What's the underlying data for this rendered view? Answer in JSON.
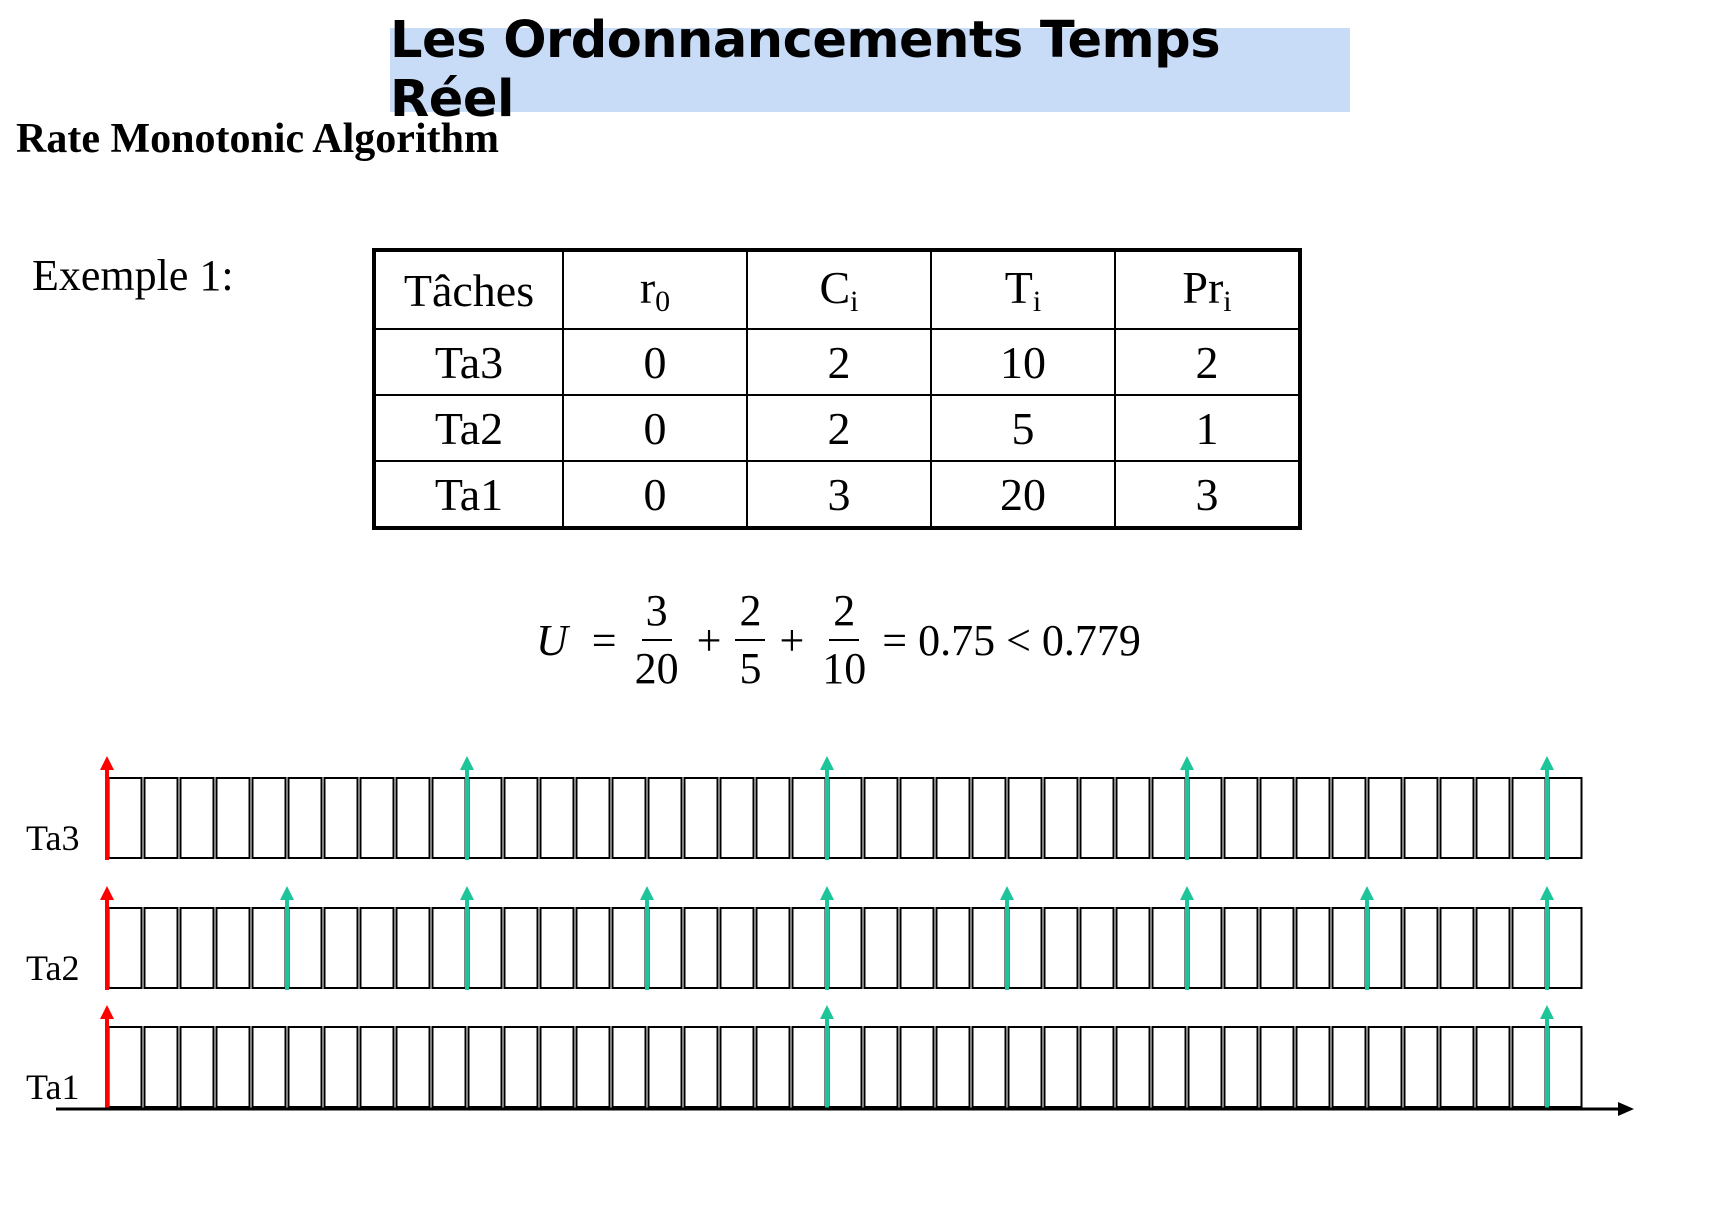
{
  "header": {
    "title": "Les Ordonnancements Temps Réel"
  },
  "subtitle": "Rate Monotonic Algorithm",
  "example_label": "Exemple 1:",
  "task_table": {
    "columns": [
      {
        "base": "Tâches",
        "sub": ""
      },
      {
        "base": "r",
        "sub": "0"
      },
      {
        "base": "C",
        "sub": "i"
      },
      {
        "base": "T",
        "sub": "i"
      },
      {
        "base": "Pr",
        "sub": "i"
      }
    ],
    "rows": [
      [
        "Ta3",
        "0",
        "2",
        "10",
        "2"
      ],
      [
        "Ta2",
        "0",
        "2",
        "5",
        "1"
      ],
      [
        "Ta1",
        "0",
        "3",
        "20",
        "3"
      ]
    ]
  },
  "formula": {
    "variable": "U",
    "equals": "=",
    "plus": "+",
    "fractions": [
      {
        "num": "3",
        "den": "20"
      },
      {
        "num": "2",
        "den": "5"
      },
      {
        "num": "2",
        "den": "10"
      }
    ],
    "result": "= 0.75 < 0.779"
  },
  "timeline": {
    "slots": 41,
    "colors": {
      "first_release": "#ff0000",
      "release": "#1ec49a",
      "grid": "#000000"
    },
    "rows": [
      {
        "label": "Ta3",
        "releases": [
          0,
          10,
          20,
          30,
          40
        ]
      },
      {
        "label": "Ta2",
        "releases": [
          0,
          5,
          10,
          15,
          20,
          25,
          30,
          35,
          40
        ]
      },
      {
        "label": "Ta1",
        "releases": [
          0,
          20,
          40
        ]
      }
    ]
  }
}
